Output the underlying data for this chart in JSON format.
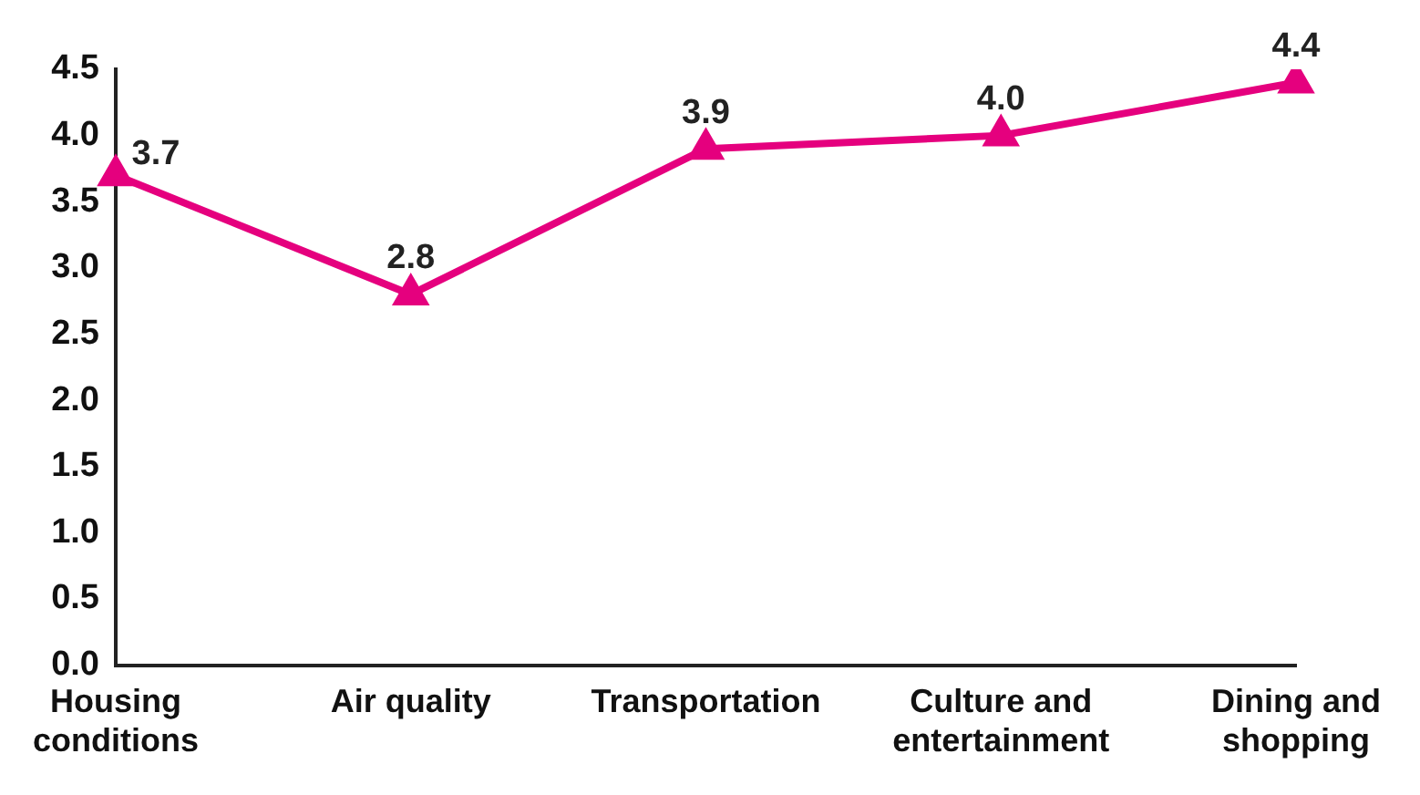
{
  "chart_data": {
    "type": "line",
    "categories": [
      "Housing conditions",
      "Air quality",
      "Transportation",
      "Culture and entertainment",
      "Dining and shopping"
    ],
    "values": [
      3.7,
      2.8,
      3.9,
      4.0,
      4.4
    ],
    "value_labels": [
      "3.7",
      "2.8",
      "3.9",
      "4.0",
      "4.4"
    ],
    "color": "#e5007e",
    "marker": "triangle",
    "line_style": "solid",
    "grid": false,
    "legend": false,
    "ylim": [
      0,
      4.5
    ],
    "yticks": [
      {
        "value": 0,
        "label": "0.0"
      },
      {
        "value": 0.5,
        "label": "0.5"
      },
      {
        "value": 1,
        "label": "1.0"
      },
      {
        "value": 1.5,
        "label": "1.5"
      },
      {
        "value": 2,
        "label": "2.0"
      },
      {
        "value": 2.5,
        "label": "2.5"
      },
      {
        "value": 3,
        "label": "3.0"
      },
      {
        "value": 3.5,
        "label": "3.5"
      },
      {
        "value": 4,
        "label": "4.0"
      },
      {
        "value": 4.5,
        "label": "4.5"
      }
    ]
  }
}
